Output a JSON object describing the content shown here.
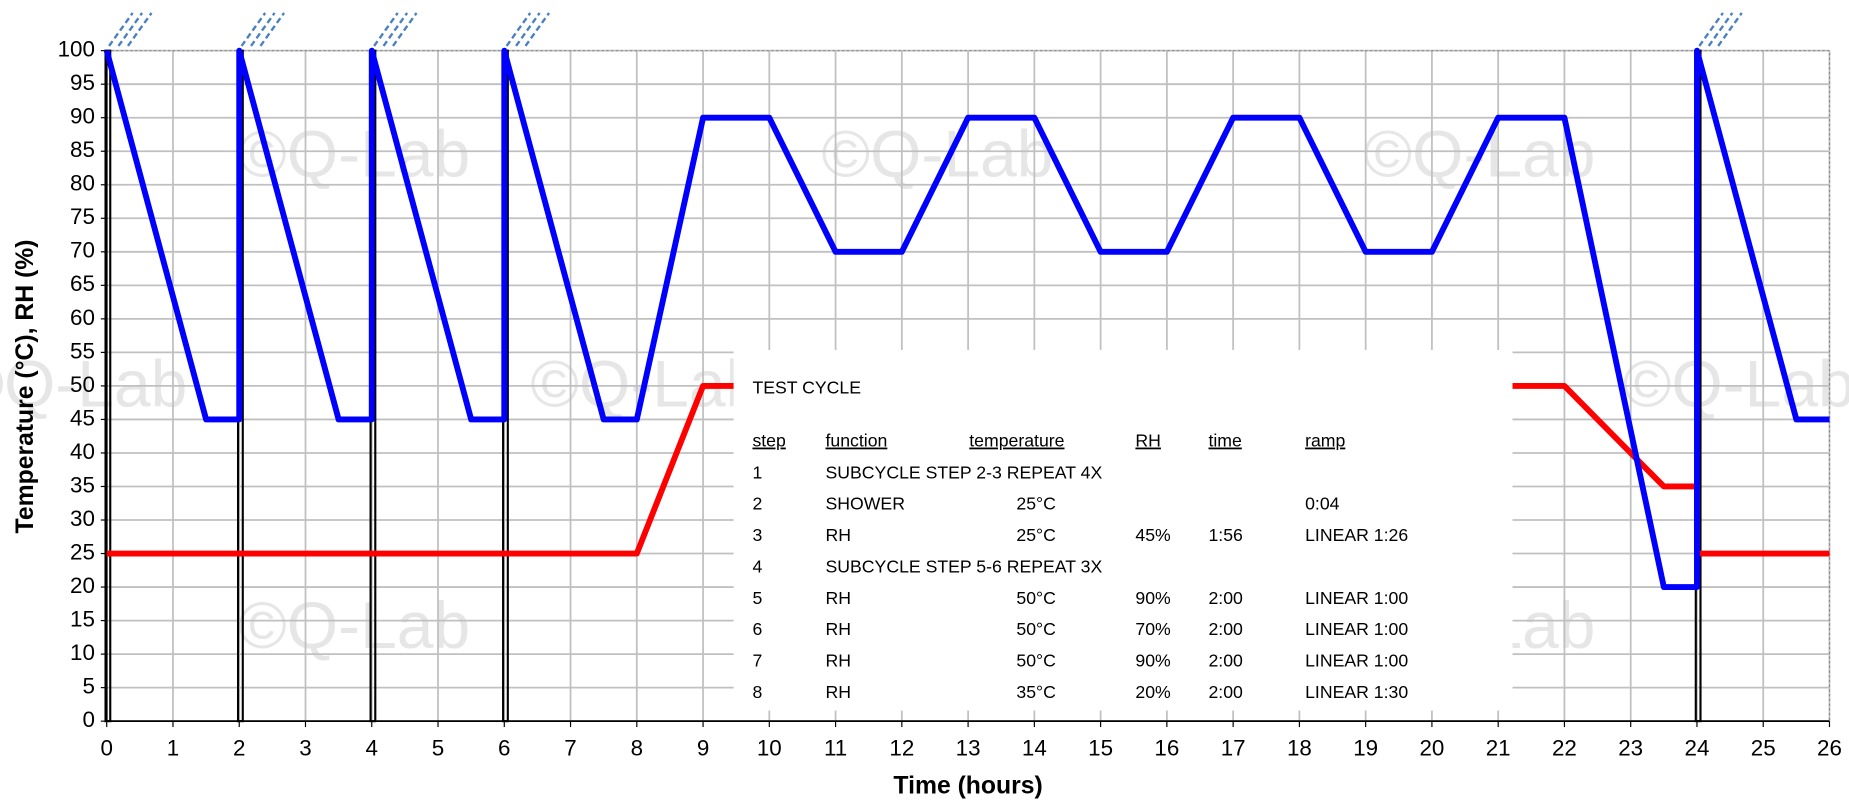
{
  "chart_data": {
    "type": "line",
    "xlabel": "Time (hours)",
    "ylabel": "Temperature (°C), RH (%)",
    "watermark": "©Q-Lab",
    "xlim": [
      0,
      26
    ],
    "xticks": [
      0,
      1,
      2,
      3,
      4,
      5,
      6,
      7,
      8,
      9,
      10,
      11,
      12,
      13,
      14,
      15,
      16,
      17,
      18,
      19,
      20,
      21,
      22,
      23,
      24,
      25,
      26
    ],
    "ylim": [
      0,
      100
    ],
    "yticks": [
      0,
      5,
      10,
      15,
      20,
      25,
      30,
      35,
      40,
      45,
      50,
      55,
      60,
      65,
      70,
      75,
      80,
      85,
      90,
      95,
      100
    ],
    "grid": true,
    "showers": [
      0,
      2,
      4,
      6,
      24
    ],
    "series": [
      {
        "color": "#0000ff",
        "x": [
          0,
          1.5,
          2,
          2,
          3.5,
          4,
          4,
          5.5,
          6,
          6,
          7.5,
          8,
          9,
          10,
          11,
          12,
          13,
          14,
          15,
          16,
          17,
          18,
          19,
          20,
          21,
          22,
          23.5,
          24,
          24,
          25.5,
          26
        ],
        "values": [
          100,
          45,
          45,
          100,
          45,
          45,
          100,
          45,
          45,
          100,
          45,
          45,
          90,
          90,
          70,
          70,
          90,
          90,
          70,
          70,
          90,
          90,
          70,
          70,
          90,
          90,
          20,
          20,
          100,
          45,
          45
        ]
      },
      {
        "color": "#ff0000",
        "x": [
          0,
          8,
          9,
          22,
          23.5,
          24,
          24,
          26
        ],
        "values": [
          25,
          25,
          50,
          50,
          35,
          35,
          25,
          25
        ]
      }
    ],
    "table": {
      "title": "TEST CYCLE",
      "headers": [
        "step",
        "function",
        "temperature",
        "RH",
        "time",
        "ramp"
      ],
      "rows": [
        [
          "1",
          "SUBCYCLE   STEP   2-3   REPEAT   4X"
        ],
        [
          "2",
          "SHOWER",
          "25°C",
          "",
          "",
          "0:04"
        ],
        [
          "3",
          "RH",
          "25°C",
          "45%",
          "1:56",
          "LINEAR 1:26"
        ],
        [
          "4",
          "SUBCYCLE   STEP   5-6   REPEAT   3X"
        ],
        [
          "5",
          "RH",
          "50°C",
          "90%",
          "2:00",
          "LINEAR 1:00"
        ],
        [
          "6",
          "RH",
          "50°C",
          "70%",
          "2:00",
          "LINEAR 1:00"
        ],
        [
          "7",
          "RH",
          "50°C",
          "90%",
          "2:00",
          "LINEAR 1:00"
        ],
        [
          "8",
          "RH",
          "35°C",
          "20%",
          "2:00",
          "LINEAR 1:30"
        ]
      ]
    }
  }
}
